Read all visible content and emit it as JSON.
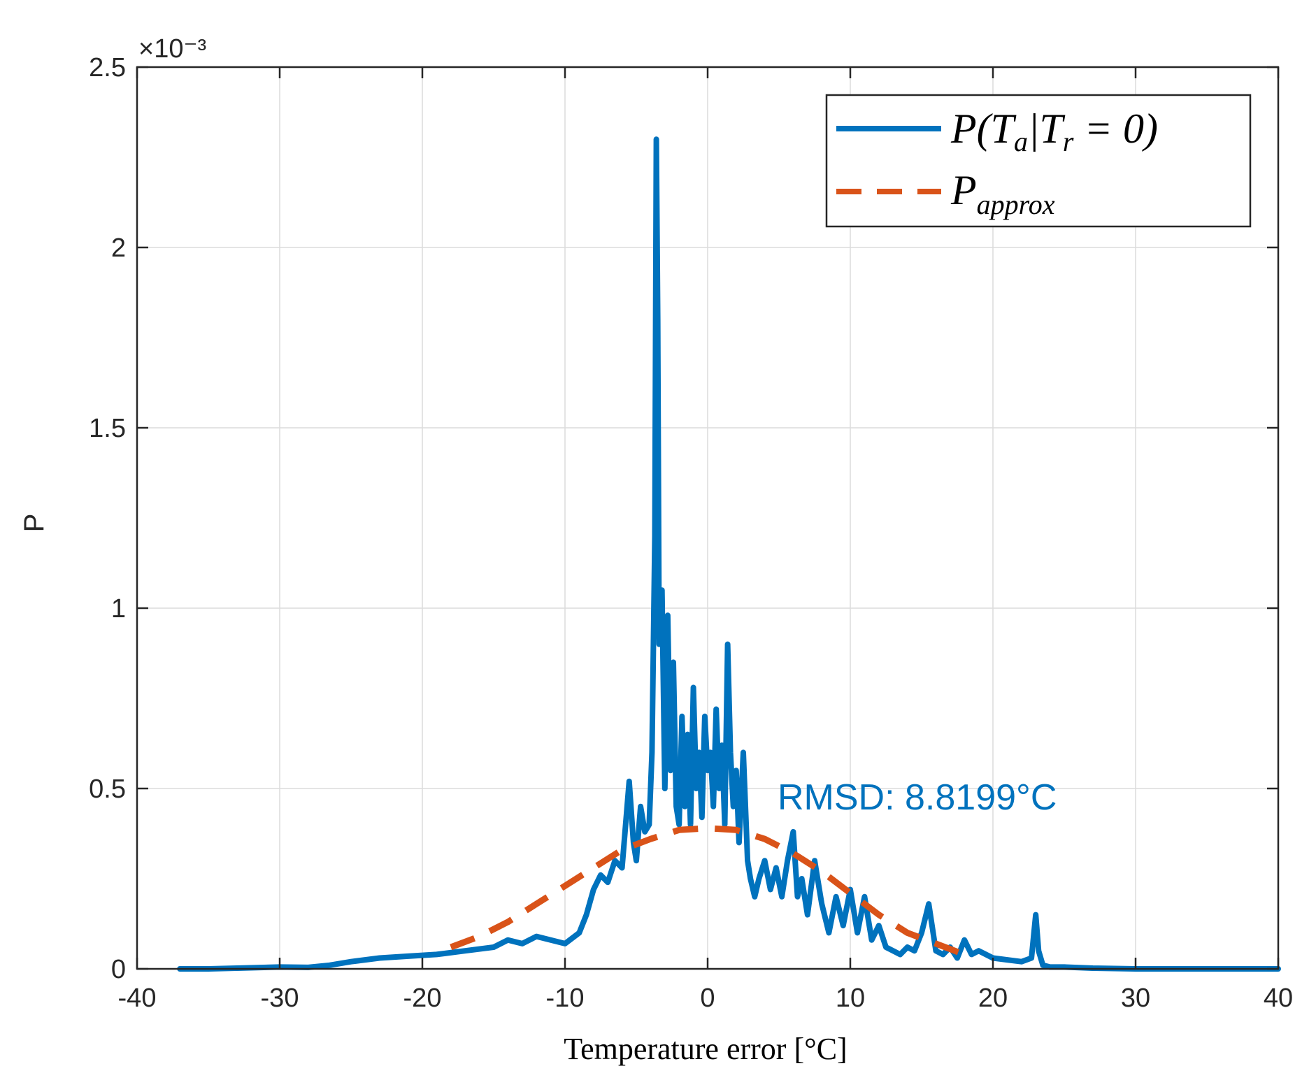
{
  "chart_data": {
    "type": "line",
    "title": "",
    "xlabel": "Temperature error [°C]",
    "ylabel": "P",
    "exponent_label": "×10⁻³",
    "xlim": [
      -40,
      40
    ],
    "ylim": [
      0,
      2.5
    ],
    "xticks": [
      -40,
      -30,
      -20,
      -10,
      0,
      10,
      20,
      30,
      40
    ],
    "xtick_labels": [
      "-40",
      "-30",
      "-20",
      "-10",
      "0",
      "10",
      "20",
      "30",
      "40"
    ],
    "yticks": [
      0,
      0.5,
      1,
      1.5,
      2,
      2.5
    ],
    "ytick_labels": [
      "0",
      "0.5",
      "1",
      "1.5",
      "2",
      "2.5"
    ],
    "grid": true,
    "legend_position": "top-right",
    "series": [
      {
        "name": "P(Ta|Tr = 0)",
        "legend_main": "P(T",
        "legend_sub1": "a",
        "legend_mid": "|T",
        "legend_sub2": "r",
        "legend_end": " = 0)",
        "style": "solid",
        "color": "#0072BD",
        "x": [
          -37,
          -35,
          -33,
          -30,
          -28,
          -26.5,
          -25,
          -23,
          -21,
          -19,
          -17,
          -15,
          -14,
          -13,
          -12,
          -11,
          -10,
          -9,
          -8.5,
          -8,
          -7.5,
          -7,
          -6.5,
          -6,
          -5.5,
          -5.2,
          -5,
          -4.7,
          -4.4,
          -4.1,
          -3.9,
          -3.7,
          -3.6,
          -3.5,
          -3.4,
          -3.2,
          -3,
          -2.8,
          -2.6,
          -2.4,
          -2.2,
          -2,
          -1.8,
          -1.6,
          -1.4,
          -1.2,
          -1,
          -0.8,
          -0.6,
          -0.4,
          -0.2,
          0,
          0.2,
          0.4,
          0.6,
          0.8,
          1,
          1.2,
          1.4,
          1.6,
          1.8,
          2,
          2.2,
          2.5,
          2.8,
          3,
          3.3,
          3.6,
          4,
          4.4,
          4.8,
          5.2,
          5.6,
          6,
          6.3,
          6.6,
          7,
          7.5,
          8,
          8.5,
          9,
          9.5,
          10,
          10.5,
          11,
          11.5,
          12,
          12.5,
          13,
          13.5,
          14,
          14.5,
          15,
          15.5,
          16,
          16.5,
          17,
          17.5,
          18,
          18.5,
          19,
          20,
          21,
          22,
          22.7,
          23,
          23.2,
          23.5,
          24,
          25,
          27,
          30,
          33,
          36,
          40
        ],
        "y": [
          0.0,
          0.0,
          0.002,
          0.005,
          0.004,
          0.01,
          0.02,
          0.03,
          0.035,
          0.04,
          0.05,
          0.06,
          0.08,
          0.07,
          0.09,
          0.08,
          0.07,
          0.1,
          0.15,
          0.22,
          0.26,
          0.24,
          0.3,
          0.28,
          0.52,
          0.35,
          0.3,
          0.45,
          0.38,
          0.4,
          0.6,
          1.2,
          2.3,
          1.8,
          0.9,
          1.05,
          0.5,
          0.98,
          0.55,
          0.85,
          0.45,
          0.4,
          0.7,
          0.45,
          0.65,
          0.4,
          0.78,
          0.5,
          0.6,
          0.42,
          0.7,
          0.55,
          0.6,
          0.45,
          0.72,
          0.5,
          0.62,
          0.4,
          0.9,
          0.6,
          0.45,
          0.55,
          0.35,
          0.6,
          0.3,
          0.25,
          0.2,
          0.25,
          0.3,
          0.22,
          0.28,
          0.2,
          0.3,
          0.38,
          0.2,
          0.25,
          0.15,
          0.3,
          0.18,
          0.1,
          0.2,
          0.12,
          0.22,
          0.1,
          0.2,
          0.08,
          0.12,
          0.06,
          0.05,
          0.04,
          0.06,
          0.05,
          0.1,
          0.18,
          0.05,
          0.04,
          0.06,
          0.03,
          0.08,
          0.04,
          0.05,
          0.03,
          0.025,
          0.02,
          0.03,
          0.15,
          0.05,
          0.01,
          0.005,
          0.005,
          0.002,
          0.0,
          0.0,
          0.0,
          0.0
        ]
      },
      {
        "name": "P_approx",
        "legend_main": "P",
        "legend_sub1": "approx",
        "style": "dashed",
        "color": "#D95319",
        "x": [
          -18,
          -16,
          -14,
          -12,
          -10,
          -8,
          -6,
          -4,
          -2,
          0,
          2,
          4,
          6,
          8,
          10,
          12,
          14,
          16,
          18
        ],
        "y": [
          0.06,
          0.09,
          0.13,
          0.18,
          0.23,
          0.28,
          0.33,
          0.36,
          0.385,
          0.39,
          0.385,
          0.36,
          0.32,
          0.27,
          0.21,
          0.15,
          0.1,
          0.07,
          0.04
        ]
      }
    ],
    "annotations": [
      {
        "text": "RMSD: 8.8199°C",
        "x": 5,
        "y": 0.45,
        "color": "#0072BD"
      }
    ]
  }
}
